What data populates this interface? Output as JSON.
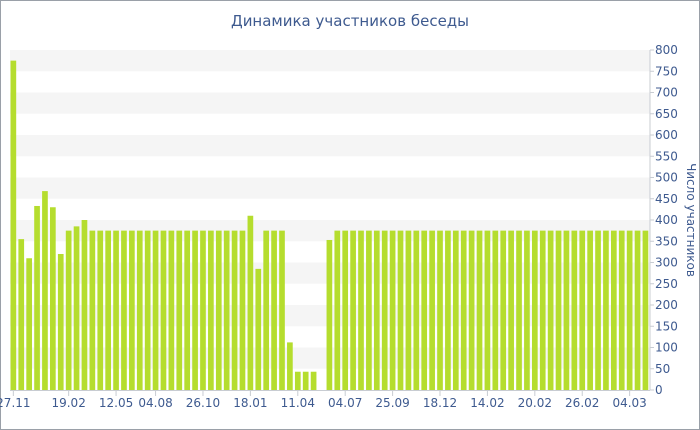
{
  "chart_data": {
    "type": "bar",
    "title": "Динамика участников беседы",
    "xlabel": "",
    "ylabel": "Число участников",
    "ylim": [
      0,
      800
    ],
    "y_ticks": [
      0,
      50,
      100,
      150,
      200,
      250,
      300,
      350,
      400,
      450,
      500,
      550,
      600,
      650,
      700,
      750,
      800
    ],
    "x_tick_labels": [
      "27.11",
      "19.02",
      "12.05",
      "04.08",
      "26.10",
      "18.01",
      "11.04",
      "04.07",
      "25.09",
      "18.12",
      "14.02",
      "20.02",
      "26.02",
      "04.03"
    ],
    "x_tick_positions": [
      0,
      7,
      13,
      18,
      24,
      30,
      36,
      42,
      48,
      54,
      60,
      66,
      72,
      78
    ],
    "grid": "horizontal bands",
    "legend": "none",
    "bar_color": "#b5dd2e",
    "values": [
      775,
      355,
      310,
      433,
      468,
      430,
      320,
      375,
      385,
      400,
      375,
      375,
      375,
      375,
      375,
      375,
      375,
      375,
      375,
      375,
      375,
      375,
      375,
      375,
      375,
      375,
      375,
      375,
      375,
      375,
      410,
      285,
      375,
      375,
      375,
      112,
      43,
      43,
      43,
      null,
      353,
      375,
      375,
      375,
      375,
      375,
      375,
      375,
      375,
      375,
      375,
      375,
      375,
      375,
      375,
      375,
      375,
      375,
      375,
      375,
      375,
      375,
      375,
      375,
      375,
      375,
      375,
      375,
      375,
      375,
      375,
      375,
      375,
      375,
      375,
      375,
      375,
      375,
      375,
      375,
      375
    ]
  }
}
